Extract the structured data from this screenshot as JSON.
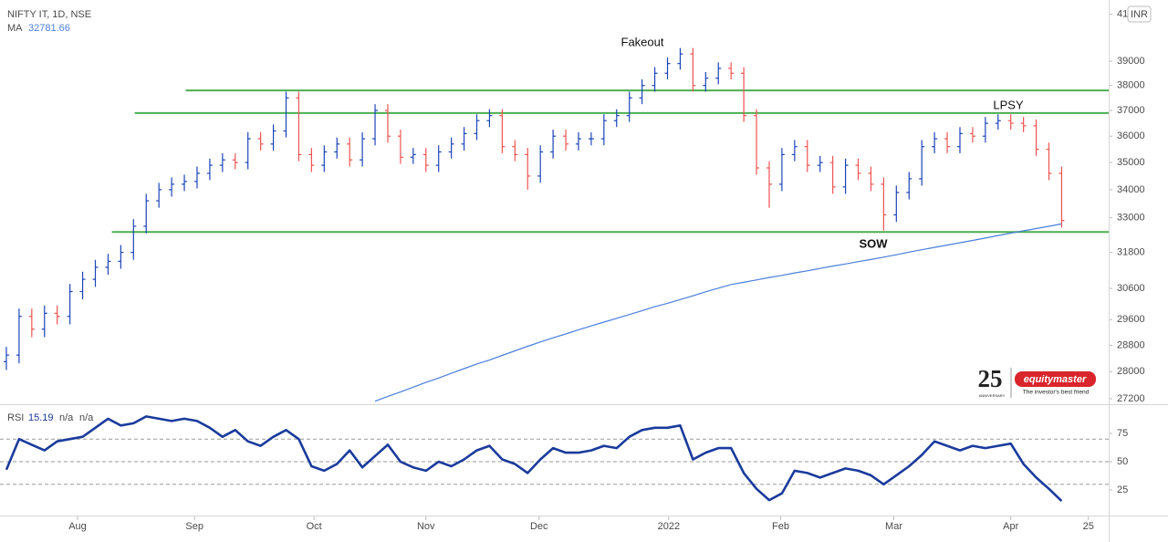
{
  "chart_data": [
    {
      "type": "ohlc",
      "title": "NIFTY IT, 1D, NSE",
      "currency": "INR",
      "log_scale": true,
      "grid": false,
      "ylim": [
        27070,
        41630
      ],
      "yticks": [
        27200,
        28000,
        28800,
        29600,
        30600,
        31800,
        33000,
        34000,
        35000,
        36000,
        37000,
        38000,
        39000,
        41000
      ],
      "xlim": [
        -0.5,
        86.7
      ],
      "xticks": [
        {
          "value": 5.6,
          "label": "Aug"
        },
        {
          "value": 14.8,
          "label": "Sep"
        },
        {
          "value": 24.2,
          "label": "Oct"
        },
        {
          "value": 33.0,
          "label": "Nov"
        },
        {
          "value": 41.9,
          "label": "Dec"
        },
        {
          "value": 52.1,
          "label": "2022"
        },
        {
          "value": 60.9,
          "label": "Feb"
        },
        {
          "value": 69.8,
          "label": "Mar"
        },
        {
          "value": 79.0,
          "label": "Apr"
        },
        {
          "value": 85.1,
          "label": "25"
        }
      ],
      "series": [
        {
          "up_color": "#1c44b8",
          "down_color": "#ef5350",
          "open": [
            28300,
            28500,
            29700,
            29300,
            29800,
            29700,
            30500,
            30900,
            31300,
            31500,
            31800,
            32700,
            33600,
            34000,
            34200,
            34300,
            34600,
            34900,
            35100,
            35000,
            35900,
            35700,
            36200,
            37500,
            35300,
            34900,
            35400,
            35700,
            35100,
            35900,
            37000,
            36000,
            35200,
            35300,
            34900,
            35400,
            35700,
            36100,
            36600,
            36800,
            35600,
            35300,
            34500,
            35400,
            36000,
            35700,
            35900,
            35900,
            36600,
            36800,
            37500,
            38000,
            38500,
            38900,
            39300,
            38000,
            38300,
            38700,
            38500,
            36800,
            34800,
            34200,
            35300,
            35600,
            34900,
            35000,
            34100,
            34900,
            34600,
            34200,
            33100,
            33900,
            34400,
            35600,
            35900,
            35600,
            36100,
            36000,
            36500,
            36600,
            36500,
            36400,
            35500,
            34600
          ],
          "high": [
            28750,
            29950,
            29950,
            30050,
            30050,
            30750,
            31150,
            31550,
            31750,
            32050,
            32950,
            33850,
            34250,
            34450,
            34550,
            34850,
            35150,
            35350,
            35350,
            36150,
            36150,
            36450,
            37750,
            37750,
            35550,
            35650,
            35950,
            35950,
            36150,
            37250,
            37250,
            36250,
            35550,
            35550,
            35650,
            35950,
            36350,
            36850,
            37050,
            37050,
            35850,
            35550,
            35650,
            36250,
            36250,
            36150,
            36150,
            36850,
            37050,
            37750,
            38250,
            38750,
            39150,
            39550,
            39550,
            38550,
            38950,
            38950,
            38750,
            37050,
            35050,
            35550,
            35850,
            35850,
            35250,
            35250,
            35150,
            35150,
            34850,
            34450,
            34150,
            34650,
            35850,
            36150,
            36150,
            36350,
            36350,
            36750,
            36850,
            36850,
            36750,
            36650,
            35750,
            34850
          ],
          "low": [
            28050,
            28250,
            29050,
            29050,
            29450,
            29450,
            30250,
            30650,
            31050,
            31250,
            31550,
            32450,
            33350,
            33750,
            33950,
            34050,
            34350,
            34650,
            34750,
            34750,
            35450,
            35450,
            35950,
            35050,
            34650,
            34650,
            35150,
            34850,
            34850,
            35650,
            35750,
            34950,
            34950,
            34650,
            34650,
            35150,
            35450,
            35850,
            36350,
            35350,
            35050,
            34000,
            34250,
            35150,
            35450,
            35450,
            35650,
            35650,
            36350,
            36550,
            37250,
            37750,
            38250,
            38650,
            37750,
            37750,
            38050,
            38250,
            36550,
            34550,
            33350,
            33950,
            35050,
            34650,
            34650,
            33850,
            33850,
            34350,
            33950,
            32550,
            32850,
            33650,
            34150,
            35350,
            35350,
            35350,
            35750,
            35750,
            36250,
            36250,
            36150,
            35250,
            34350,
            32650
          ],
          "close": [
            28500,
            29700,
            29300,
            29800,
            29700,
            30500,
            30900,
            31300,
            31500,
            31800,
            32700,
            33600,
            34000,
            34200,
            34300,
            34600,
            34900,
            35100,
            35000,
            35900,
            35700,
            36200,
            37500,
            35300,
            34900,
            35400,
            35700,
            35100,
            35900,
            37000,
            36000,
            35200,
            35300,
            34900,
            35400,
            35700,
            36100,
            36600,
            36800,
            35600,
            35300,
            34500,
            35400,
            36000,
            35700,
            35900,
            35900,
            36600,
            36800,
            37500,
            38000,
            38500,
            38900,
            39300,
            38000,
            38300,
            38700,
            38500,
            36800,
            34800,
            34200,
            35300,
            35600,
            34900,
            35000,
            34100,
            34900,
            34600,
            34200,
            33100,
            33900,
            34400,
            35600,
            35900,
            35600,
            36100,
            36000,
            36500,
            36600,
            36500,
            36400,
            35500,
            34600,
            32900
          ]
        },
        {
          "name": "MA",
          "color": "#4a7fdc",
          "values": [
            null,
            null,
            null,
            null,
            null,
            null,
            null,
            null,
            null,
            null,
            null,
            null,
            null,
            null,
            null,
            null,
            null,
            null,
            null,
            null,
            null,
            null,
            null,
            null,
            null,
            null,
            null,
            null,
            null,
            27130,
            27270,
            27400,
            27540,
            27680,
            27810,
            27950,
            28090,
            28230,
            28350,
            28490,
            28630,
            28770,
            28900,
            29030,
            29150,
            29280,
            29400,
            29520,
            29640,
            29760,
            29880,
            30010,
            30120,
            30240,
            30360,
            30490,
            30610,
            30730,
            30800,
            30880,
            30960,
            31030,
            31110,
            31180,
            31260,
            31340,
            31410,
            31490,
            31560,
            31640,
            31720,
            31810,
            31890,
            31970,
            32050,
            32130,
            32210,
            32290,
            32380,
            32460,
            32540,
            32620,
            32700,
            32781.66
          ]
        }
      ],
      "levels": [
        {
          "value": 37800,
          "x_start": 14.1,
          "color": "#4caf50"
        },
        {
          "value": 36900,
          "x_start": 10.1,
          "color": "#4caf50"
        },
        {
          "value": 32500,
          "x_start": 8.3,
          "color": "#4caf50"
        }
      ],
      "annotations": [
        "Fakeout",
        "LPSY",
        "SOW"
      ]
    },
    {
      "type": "line",
      "title": "RSI",
      "legend_values": [
        "n/a",
        "n/a"
      ],
      "ylim": [
        2.4,
        98.4
      ],
      "yticks": [
        25,
        50,
        75
      ],
      "levels": [
        70,
        50,
        30
      ],
      "series": [
        {
          "color": "#1a3b9c",
          "values": [
            43,
            70,
            65,
            60,
            68,
            70,
            72,
            80,
            88,
            82,
            84,
            90,
            88,
            86,
            88,
            86,
            80,
            72,
            78,
            68,
            64,
            72,
            78,
            70,
            46,
            42,
            48,
            60,
            45,
            55,
            65,
            50,
            45,
            42,
            50,
            46,
            52,
            60,
            64,
            52,
            48,
            40,
            52,
            62,
            58,
            58,
            60,
            64,
            62,
            72,
            78,
            80,
            80,
            82,
            52,
            58,
            62,
            62,
            40,
            26,
            16,
            22,
            42,
            40,
            36,
            40,
            44,
            42,
            38,
            30,
            38,
            46,
            56,
            68,
            64,
            60,
            64,
            62,
            64,
            66,
            48,
            36,
            26,
            15.19
          ]
        }
      ]
    }
  ],
  "watermark": {
    "number": "25",
    "anniversary": "ANNIVERSARY",
    "name": "equitymaster",
    "tagline": "The investor's best friend"
  }
}
